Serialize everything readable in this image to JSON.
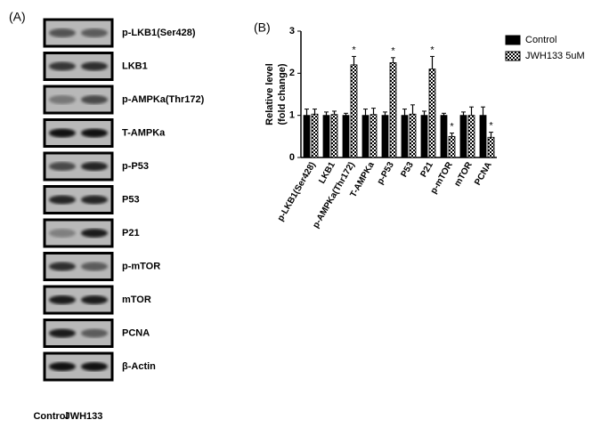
{
  "blots": {
    "panel_label": "(A)",
    "rows": [
      "p-LKB1(Ser428)",
      "LKB1",
      "p-AMPKa(Thr172)",
      "T-AMPKa",
      "p-P53",
      "P53",
      "P21",
      "p-mTOR",
      "mTOR",
      "PCNA",
      "β-Actin"
    ],
    "lanes": [
      "Control",
      "JWH133"
    ]
  },
  "chart_data": {
    "type": "bar",
    "panel_label": "(B)",
    "ylabel": [
      "Relative level",
      "(fold change)"
    ],
    "categories": [
      "p-LKB1(Ser428)",
      "LKB1",
      "p-AMPKa(Thr172)",
      "T-AMPKa",
      "p-P53",
      "P53",
      "P21",
      "p-mTOR",
      "mTOR",
      "PCNA"
    ],
    "series": [
      {
        "name": "Control",
        "color": "#000000",
        "values": [
          1,
          1,
          1,
          1,
          1,
          1,
          1,
          1,
          1,
          1
        ],
        "errors": [
          0.15,
          0.08,
          0.05,
          0.15,
          0.08,
          0.15,
          0.1,
          0.05,
          0.08,
          0.2
        ]
      },
      {
        "name": "JWH133 5uM",
        "color": "#000000",
        "hatch": "checker",
        "values": [
          1.03,
          1.02,
          2.2,
          1.02,
          2.25,
          1.03,
          2.1,
          0.5,
          1.0,
          0.48
        ],
        "errors": [
          0.12,
          0.08,
          0.2,
          0.15,
          0.12,
          0.22,
          0.3,
          0.08,
          0.2,
          0.12
        ],
        "markers": [
          null,
          null,
          "*",
          null,
          "*",
          null,
          "*",
          "*",
          null,
          "*"
        ]
      }
    ],
    "ylim": [
      0,
      3
    ],
    "yticks": [
      0,
      1,
      2,
      3
    ],
    "grid": false,
    "legend": "top-right"
  }
}
